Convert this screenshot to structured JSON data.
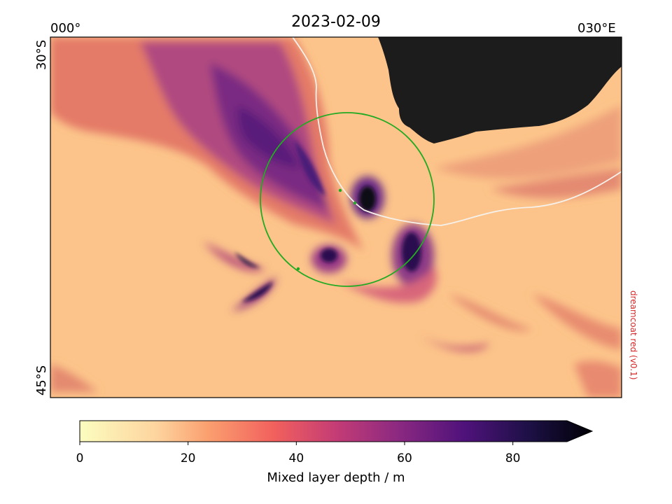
{
  "title": "2023-02-09",
  "map": {
    "lon_labels": [
      "000°",
      "030°E"
    ],
    "lat_labels": [
      "30°S",
      "45°S"
    ],
    "land_color": "#1c1c1c",
    "ocean_base_color": "#fcc48a",
    "front_line_color": "#f5f0ea",
    "circle_color": "#22aa22"
  },
  "colorbar": {
    "label": "Mixed layer depth / m",
    "ticks": [
      "0",
      "20",
      "40",
      "60",
      "80"
    ],
    "tick_values": [
      0,
      20,
      40,
      60,
      80
    ],
    "vmin": 0,
    "vmax": 90,
    "colormap": "magma_r",
    "extend": "max"
  },
  "watermark": "dreamcoat red (v0.1)"
}
